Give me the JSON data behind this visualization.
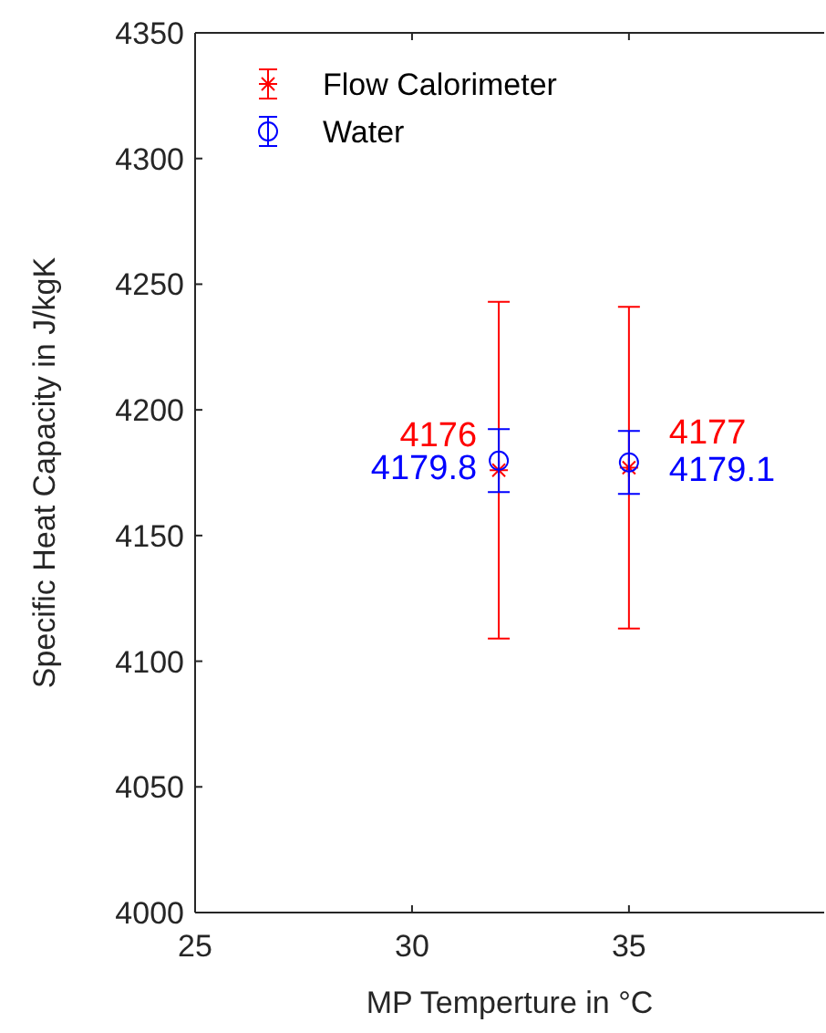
{
  "chart_data": {
    "type": "scatter",
    "xlabel": "MP Temperture in °C",
    "ylabel": "Specific Heat Capacity in J/kgK",
    "x": [
      32,
      35
    ],
    "xlim": [
      25,
      39.5
    ],
    "xticks": [
      25,
      30,
      35
    ],
    "ylim": [
      4000,
      4350
    ],
    "yticks": [
      4000,
      4050,
      4100,
      4150,
      4200,
      4250,
      4300,
      4350
    ],
    "series": [
      {
        "name": "Flow Calorimeter",
        "color": "#ff0000",
        "marker": "cross",
        "values": [
          4176,
          4177
        ],
        "errors": [
          67,
          64
        ],
        "value_labels": [
          "4176",
          "4177"
        ]
      },
      {
        "name": "Water",
        "color": "#0000ff",
        "marker": "circle",
        "values": [
          4179.8,
          4179.1
        ],
        "errors": [
          12.5,
          12.5
        ],
        "value_labels": [
          "4179.8",
          "4179.1"
        ]
      }
    ],
    "legend": "top left",
    "grid": false
  }
}
